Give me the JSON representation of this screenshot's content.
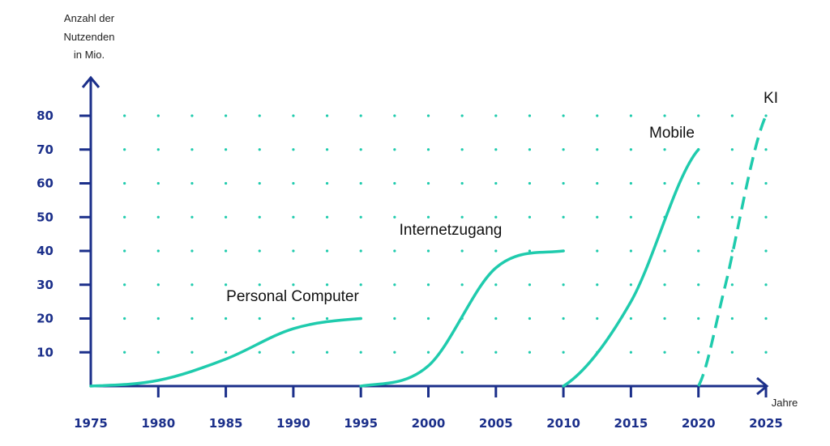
{
  "chart_data": {
    "type": "line",
    "ylabel_lines": [
      "Anzahl der",
      "Nutzenden",
      "in Mio."
    ],
    "xlabel": "Jahre",
    "xlim": [
      1975,
      2025
    ],
    "ylim": [
      0,
      80
    ],
    "x_ticks": [
      "1975",
      "1980",
      "1985",
      "1990",
      "1995",
      "2000",
      "2005",
      "2010",
      "2015",
      "2020",
      "2025"
    ],
    "y_ticks": [
      "10",
      "20",
      "30",
      "40",
      "50",
      "60",
      "70",
      "80"
    ],
    "grid": "dotted",
    "colors": {
      "axis": "#1b2f8a",
      "line": "#1fcbad",
      "grid": "#1fcbad",
      "mobile_label": "#1b2f8a"
    },
    "series": [
      {
        "name": "Personal Computer",
        "style": "solid",
        "x": [
          1975,
          1980,
          1985,
          1990,
          1995
        ],
        "y": [
          0,
          1.7,
          8,
          17,
          20
        ]
      },
      {
        "name": "Internetzugang",
        "style": "solid",
        "x": [
          1995,
          2000,
          2005,
          2010
        ],
        "y": [
          0,
          6,
          35,
          40
        ]
      },
      {
        "name": "Mobile",
        "style": "solid",
        "x": [
          2010,
          2015,
          2020
        ],
        "y": [
          0,
          25,
          70
        ]
      },
      {
        "name": "KI",
        "style": "dashed",
        "x": [
          2020,
          2022,
          2025
        ],
        "y": [
          0,
          30,
          80
        ]
      }
    ]
  }
}
